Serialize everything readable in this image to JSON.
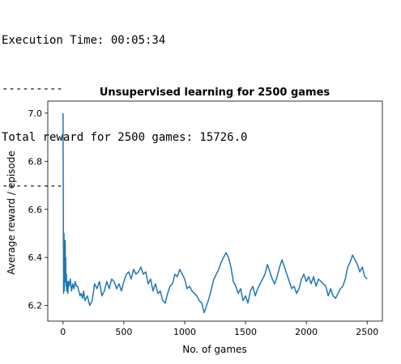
{
  "console": {
    "lines": [
      "Execution Time: 00:05:34",
      "---------",
      "Total reward for 2500 games: 15726.0",
      "---------"
    ]
  },
  "chart_data": {
    "type": "line",
    "title": "Unsupervised learning for 2500 games",
    "xlabel": "No. of games",
    "ylabel": "Average reward / episode",
    "xlim": [
      -125,
      2625
    ],
    "ylim": [
      6.135,
      7.05
    ],
    "xticks": [
      0,
      500,
      1000,
      1500,
      2000,
      2500
    ],
    "yticks": [
      6.2,
      6.4,
      6.6,
      6.8,
      7.0
    ],
    "xtick_labels": [
      "0",
      "500",
      "1000",
      "1500",
      "2000",
      "2500"
    ],
    "ytick_labels": [
      "6.2",
      "6.4",
      "6.6",
      "6.8",
      "7.0"
    ],
    "grid": false,
    "color": "#1f77b4",
    "series": [
      {
        "x": [
          0,
          2,
          5,
          8,
          10,
          12,
          15,
          18,
          20,
          22,
          25,
          28,
          30,
          35,
          40,
          45,
          50,
          60,
          70,
          80,
          90,
          100,
          110,
          120,
          130,
          140,
          150,
          160,
          170,
          180,
          200,
          220,
          240,
          260,
          280,
          300,
          320,
          340,
          360,
          380,
          400,
          420,
          440,
          460,
          480,
          500,
          520,
          540,
          560,
          580,
          600,
          620,
          640,
          660,
          680,
          700,
          720,
          740,
          760,
          780,
          800,
          820,
          840,
          860,
          880,
          900,
          920,
          940,
          960,
          980,
          1000,
          1020,
          1040,
          1060,
          1080,
          1100,
          1120,
          1140,
          1160,
          1180,
          1200,
          1220,
          1240,
          1260,
          1280,
          1300,
          1320,
          1340,
          1360,
          1380,
          1400,
          1420,
          1440,
          1460,
          1480,
          1500,
          1520,
          1540,
          1560,
          1580,
          1600,
          1620,
          1640,
          1660,
          1680,
          1700,
          1720,
          1740,
          1760,
          1780,
          1800,
          1820,
          1840,
          1860,
          1880,
          1900,
          1920,
          1940,
          1960,
          1980,
          2000,
          2020,
          2040,
          2060,
          2080,
          2100,
          2120,
          2140,
          2160,
          2180,
          2200,
          2220,
          2240,
          2260,
          2280,
          2300,
          2320,
          2340,
          2360,
          2380,
          2400,
          2420,
          2440,
          2460,
          2480,
          2500
        ],
        "y": [
          7.0,
          6.67,
          6.25,
          6.5,
          6.26,
          6.44,
          6.3,
          6.47,
          6.3,
          6.4,
          6.28,
          6.33,
          6.26,
          6.3,
          6.25,
          6.3,
          6.28,
          6.31,
          6.26,
          6.29,
          6.27,
          6.3,
          6.28,
          6.28,
          6.26,
          6.24,
          6.25,
          6.23,
          6.26,
          6.22,
          6.24,
          6.2,
          6.22,
          6.29,
          6.27,
          6.3,
          6.24,
          6.26,
          6.3,
          6.27,
          6.31,
          6.3,
          6.27,
          6.29,
          6.26,
          6.3,
          6.33,
          6.34,
          6.31,
          6.35,
          6.33,
          6.34,
          6.36,
          6.33,
          6.34,
          6.29,
          6.31,
          6.26,
          6.29,
          6.25,
          6.26,
          6.22,
          6.21,
          6.25,
          6.28,
          6.29,
          6.33,
          6.32,
          6.35,
          6.33,
          6.31,
          6.27,
          6.28,
          6.26,
          6.25,
          6.24,
          6.22,
          6.21,
          6.17,
          6.2,
          6.23,
          6.27,
          6.31,
          6.33,
          6.35,
          6.38,
          6.4,
          6.42,
          6.4,
          6.36,
          6.3,
          6.28,
          6.25,
          6.27,
          6.22,
          6.24,
          6.21,
          6.26,
          6.28,
          6.24,
          6.27,
          6.29,
          6.31,
          6.33,
          6.37,
          6.34,
          6.31,
          6.29,
          6.32,
          6.36,
          6.39,
          6.36,
          6.33,
          6.3,
          6.27,
          6.28,
          6.25,
          6.27,
          6.31,
          6.33,
          6.3,
          6.32,
          6.29,
          6.32,
          6.28,
          6.31,
          6.3,
          6.29,
          6.28,
          6.24,
          6.27,
          6.24,
          6.23,
          6.25,
          6.27,
          6.28,
          6.31,
          6.36,
          6.38,
          6.41,
          6.39,
          6.37,
          6.34,
          6.36,
          6.32,
          6.31
        ]
      }
    ]
  }
}
